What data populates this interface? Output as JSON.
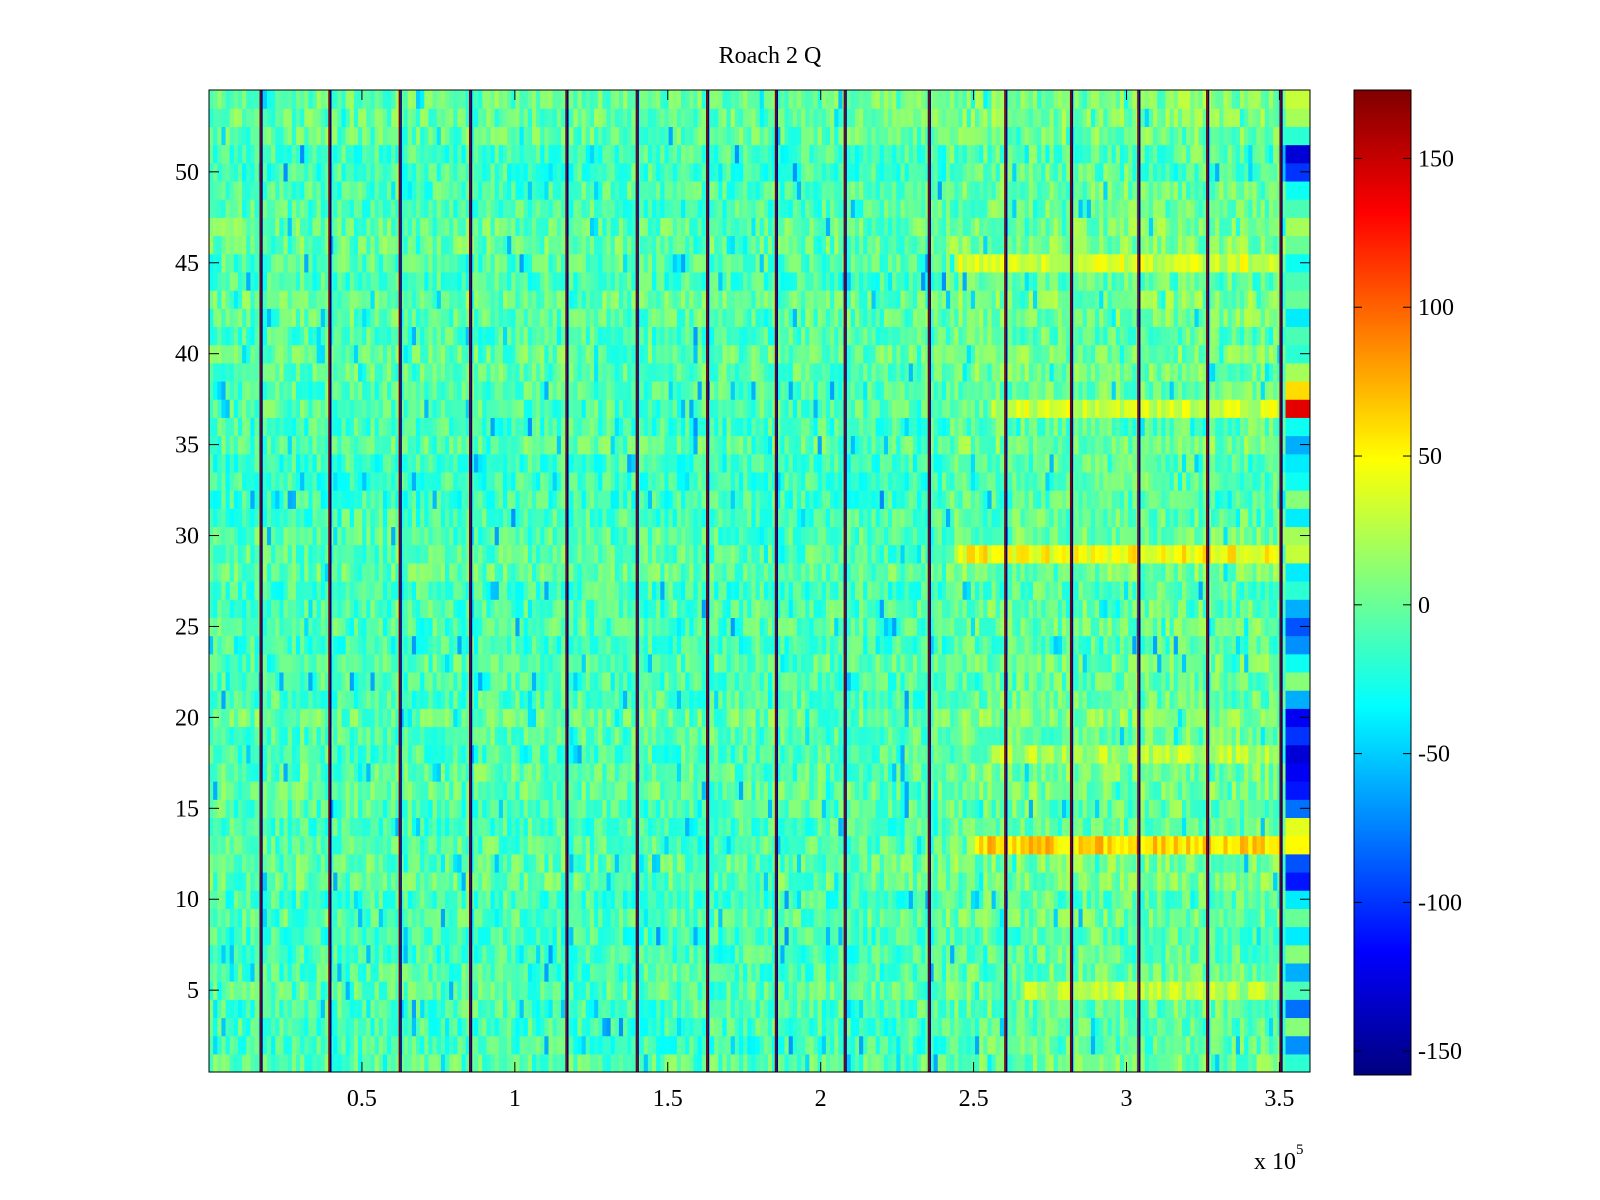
{
  "chart_data": {
    "type": "heatmap",
    "title": "Roach 2 Q",
    "xlabel": "",
    "ylabel": "",
    "x_range": [
      0,
      360000
    ],
    "x_ticks": [
      50000,
      100000,
      150000,
      200000,
      250000,
      300000,
      350000
    ],
    "x_tick_labels": [
      "0.5",
      "1",
      "1.5",
      "2",
      "2.5",
      "3",
      "3.5"
    ],
    "x_exponent_label": "x 10",
    "x_exponent_power": "5",
    "y_range": [
      0.5,
      54.5
    ],
    "y_ticks": [
      5,
      10,
      15,
      20,
      25,
      30,
      35,
      40,
      45,
      50
    ],
    "y_tick_labels": [
      "5",
      "10",
      "15",
      "20",
      "25",
      "30",
      "35",
      "40",
      "45",
      "50"
    ],
    "rows": 54,
    "colorbar": {
      "range": [
        -158,
        173
      ],
      "ticks": [
        -150,
        -100,
        -50,
        0,
        50,
        100,
        150
      ],
      "tick_labels": [
        "-150",
        "-100",
        "-50",
        "0",
        "50",
        "100",
        "150"
      ],
      "colormap": "jet"
    },
    "typical_value_range": [
      -40,
      20
    ],
    "vertical_stripe_x": [
      17000,
      39500,
      62500,
      85500,
      117000,
      140000,
      163000,
      185500,
      208000,
      235500,
      260500,
      282000,
      304000,
      326500,
      350500
    ],
    "vertical_stripe_values": [
      173,
      -158
    ],
    "warm_bands": [
      {
        "row": 13,
        "x_from": 250000,
        "x_to": 350000,
        "value": 75
      },
      {
        "row": 29,
        "x_from": 245000,
        "x_to": 350000,
        "value": 60
      },
      {
        "row": 37,
        "x_from": 255000,
        "x_to": 350000,
        "value": 45
      },
      {
        "row": 45,
        "x_from": 245000,
        "x_to": 350000,
        "value": 45
      },
      {
        "row": 18,
        "x_from": 255000,
        "x_to": 350000,
        "value": 35
      },
      {
        "row": 5,
        "x_from": 265000,
        "x_to": 350000,
        "value": 35
      }
    ],
    "right_edge_column": {
      "x_from": 352000,
      "x_to": 360000,
      "values_by_row": {
        "1": -20,
        "2": -70,
        "3": 10,
        "4": -80,
        "5": -10,
        "6": -60,
        "7": 10,
        "8": -40,
        "9": 0,
        "10": -40,
        "11": -110,
        "12": -90,
        "13": 50,
        "14": 40,
        "15": -80,
        "16": -110,
        "17": -120,
        "18": -130,
        "19": -100,
        "20": -120,
        "21": -60,
        "22": 10,
        "23": -30,
        "24": -70,
        "25": -90,
        "26": -60,
        "27": -20,
        "28": -40,
        "29": 30,
        "30": 20,
        "31": -40,
        "32": 10,
        "33": -30,
        "34": -40,
        "35": -60,
        "36": -30,
        "37": 140,
        "38": 60,
        "39": 20,
        "40": -20,
        "41": -10,
        "42": -40,
        "43": 0,
        "44": -10,
        "45": -30,
        "46": 0,
        "47": 20,
        "48": -10,
        "49": -30,
        "50": -100,
        "51": -130,
        "52": -20,
        "53": 20,
        "54": 30
      }
    }
  }
}
